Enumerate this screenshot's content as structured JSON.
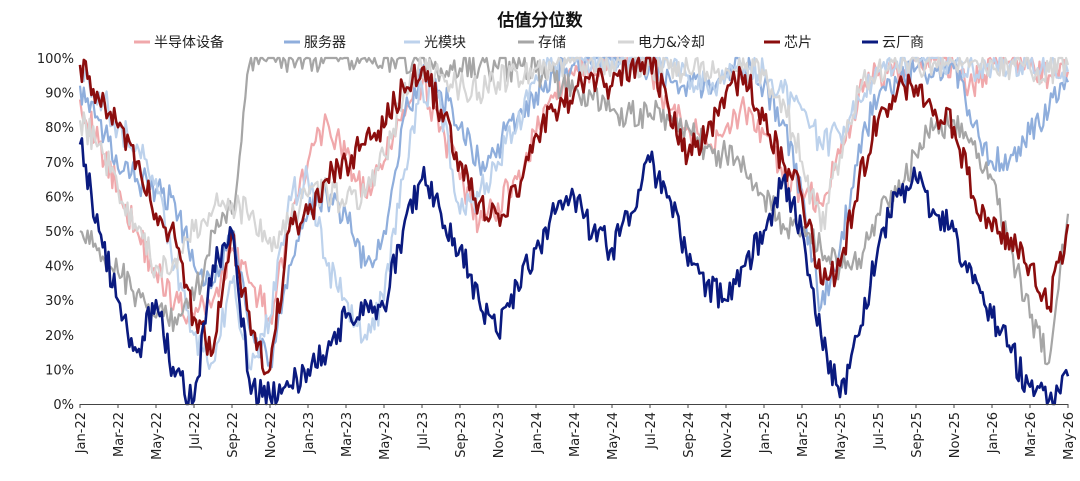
{
  "chart_data": {
    "type": "line",
    "title": "估值分位数",
    "xlabel": "",
    "ylabel": "",
    "ylim": [
      0,
      100
    ],
    "y_ticks": [
      "0%",
      "10%",
      "20%",
      "30%",
      "40%",
      "50%",
      "60%",
      "70%",
      "80%",
      "90%",
      "100%"
    ],
    "x": [
      "2022-01",
      "2022-02",
      "2022-03",
      "2022-04",
      "2022-05",
      "2022-06",
      "2022-07",
      "2022-08",
      "2022-09",
      "2022-10",
      "2022-11",
      "2022-12",
      "2023-01",
      "2023-02",
      "2023-03",
      "2023-04",
      "2023-05",
      "2023-06",
      "2023-07",
      "2023-08",
      "2023-09",
      "2023-10",
      "2023-11",
      "2023-12",
      "2024-01",
      "2024-02",
      "2024-03",
      "2024-04",
      "2024-05",
      "2024-06",
      "2024-07",
      "2024-08",
      "2024-09",
      "2024-10",
      "2024-11",
      "2024-12",
      "2025-01",
      "2025-02",
      "2025-03",
      "2025-04",
      "2025-05",
      "2025-06",
      "2025-07",
      "2025-08",
      "2025-09",
      "2025-10",
      "2025-11",
      "2025-12",
      "2026-01",
      "2026-02",
      "2026-03",
      "2026-04",
      "2026-05"
    ],
    "x_tick_labels": [
      "Jan-22",
      "Mar-22",
      "May-22",
      "Jul-22",
      "Sep-22",
      "Nov-22",
      "Jan-23",
      "Mar-23",
      "May-23",
      "Jul-23",
      "Sep-23",
      "Nov-23",
      "Jan-24",
      "Mar-24",
      "May-24",
      "Jul-24",
      "Sep-24",
      "Nov-24",
      "Jan-25",
      "Mar-25",
      "May-25",
      "Jul-25",
      "Sep-25",
      "Nov-25",
      "Jan-26",
      "Mar-26",
      "May-26"
    ],
    "legend_position": "top",
    "grid": false,
    "series": [
      {
        "name": "半导体设备",
        "color": "#f0a8ab",
        "values": [
          88,
          75,
          62,
          50,
          38,
          30,
          25,
          30,
          45,
          35,
          25,
          50,
          70,
          82,
          72,
          60,
          70,
          85,
          92,
          80,
          65,
          52,
          58,
          65,
          78,
          90,
          95,
          98,
          100,
          100,
          98,
          85,
          80,
          75,
          80,
          85,
          78,
          65,
          62,
          58,
          72,
          90,
          95,
          97,
          100,
          99,
          97,
          92,
          99,
          99,
          97,
          95,
          96
        ]
      },
      {
        "name": "服务器",
        "color": "#8faedc",
        "values": [
          92,
          82,
          68,
          65,
          62,
          58,
          40,
          35,
          50,
          20,
          12,
          40,
          55,
          60,
          55,
          40,
          50,
          82,
          95,
          90,
          80,
          70,
          75,
          82,
          90,
          95,
          98,
          100,
          99,
          100,
          98,
          95,
          93,
          92,
          95,
          98,
          92,
          82,
          60,
          28,
          45,
          75,
          88,
          93,
          97,
          97,
          97,
          80,
          70,
          72,
          78,
          85,
          93
        ]
      },
      {
        "name": "光模块",
        "color": "#bdd2ec",
        "values": [
          98,
          90,
          80,
          75,
          65,
          40,
          20,
          12,
          35,
          10,
          25,
          60,
          65,
          40,
          30,
          20,
          30,
          65,
          92,
          85,
          55,
          60,
          70,
          80,
          95,
          98,
          100,
          100,
          100,
          100,
          100,
          97,
          95,
          92,
          95,
          98,
          96,
          90,
          85,
          75,
          78,
          88,
          96,
          99,
          100,
          100,
          99,
          97,
          98,
          99,
          99,
          98,
          96
        ]
      },
      {
        "name": "存储",
        "color": "#a6a6a6",
        "values": [
          50,
          45,
          38,
          32,
          25,
          25,
          30,
          50,
          55,
          100,
          100,
          100,
          100,
          100,
          100,
          100,
          100,
          100,
          100,
          97,
          97,
          97,
          97,
          97,
          96,
          93,
          90,
          88,
          85,
          84,
          84,
          82,
          80,
          74,
          72,
          68,
          60,
          52,
          50,
          45,
          40,
          42,
          55,
          60,
          72,
          80,
          82,
          75,
          65,
          45,
          25,
          12,
          55
        ]
      },
      {
        "name": "电力&冷却",
        "color": "#d6d6d6",
        "values": [
          82,
          75,
          62,
          50,
          40,
          42,
          50,
          56,
          58,
          55,
          48,
          52,
          60,
          62,
          58,
          60,
          72,
          88,
          97,
          95,
          92,
          90,
          93,
          96,
          97,
          98,
          99,
          99,
          99,
          99,
          98,
          97,
          97,
          96,
          97,
          97,
          95,
          88,
          70,
          50,
          72,
          90,
          97,
          98,
          99,
          99,
          99,
          99,
          99,
          98,
          97,
          96,
          98
        ]
      },
      {
        "name": "芯片",
        "color": "#8b0d0d",
        "values": [
          98,
          88,
          80,
          70,
          55,
          48,
          25,
          15,
          50,
          20,
          10,
          50,
          55,
          65,
          70,
          75,
          80,
          92,
          97,
          85,
          70,
          58,
          55,
          60,
          78,
          85,
          90,
          95,
          92,
          98,
          100,
          85,
          72,
          78,
          90,
          95,
          82,
          70,
          60,
          35,
          40,
          65,
          82,
          90,
          92,
          85,
          80,
          60,
          50,
          48,
          40,
          28,
          52
        ]
      },
      {
        "name": "云厂商",
        "color": "#0a1a7f",
        "values": [
          75,
          50,
          30,
          15,
          30,
          8,
          1,
          40,
          50,
          3,
          2,
          5,
          10,
          15,
          25,
          30,
          28,
          50,
          65,
          55,
          45,
          30,
          20,
          35,
          45,
          55,
          60,
          50,
          45,
          55,
          70,
          60,
          40,
          35,
          30,
          40,
          50,
          65,
          50,
          20,
          2,
          20,
          45,
          60,
          65,
          55,
          50,
          35,
          25,
          15,
          5,
          1,
          8
        ]
      }
    ]
  }
}
